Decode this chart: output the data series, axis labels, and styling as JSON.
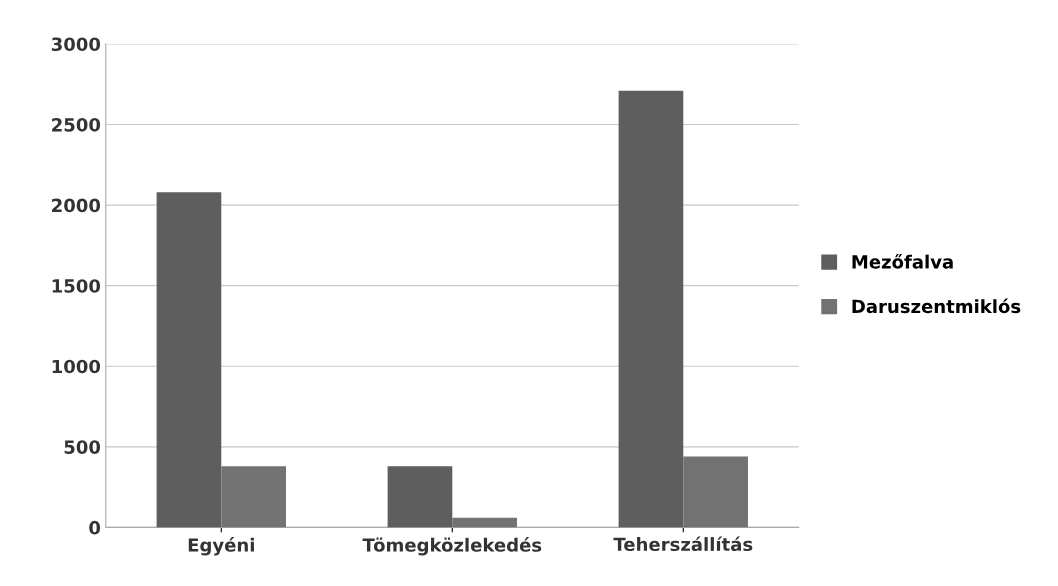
{
  "chart_data": {
    "type": "bar",
    "categories": [
      "Egyéni",
      "Tömegközlekedés",
      "Teherszállítás"
    ],
    "series": [
      {
        "name": "Mezőfalva",
        "color": "#5e5e5e",
        "values": [
          2080,
          380,
          2710
        ]
      },
      {
        "name": "Daruszentmiklós",
        "color": "#727272",
        "values": [
          380,
          60,
          440
        ]
      }
    ],
    "ylim": [
      0,
      3000
    ],
    "yticks": [
      0,
      500,
      1000,
      1500,
      2000,
      2500,
      3000
    ],
    "grid": "y",
    "legend": "right"
  }
}
